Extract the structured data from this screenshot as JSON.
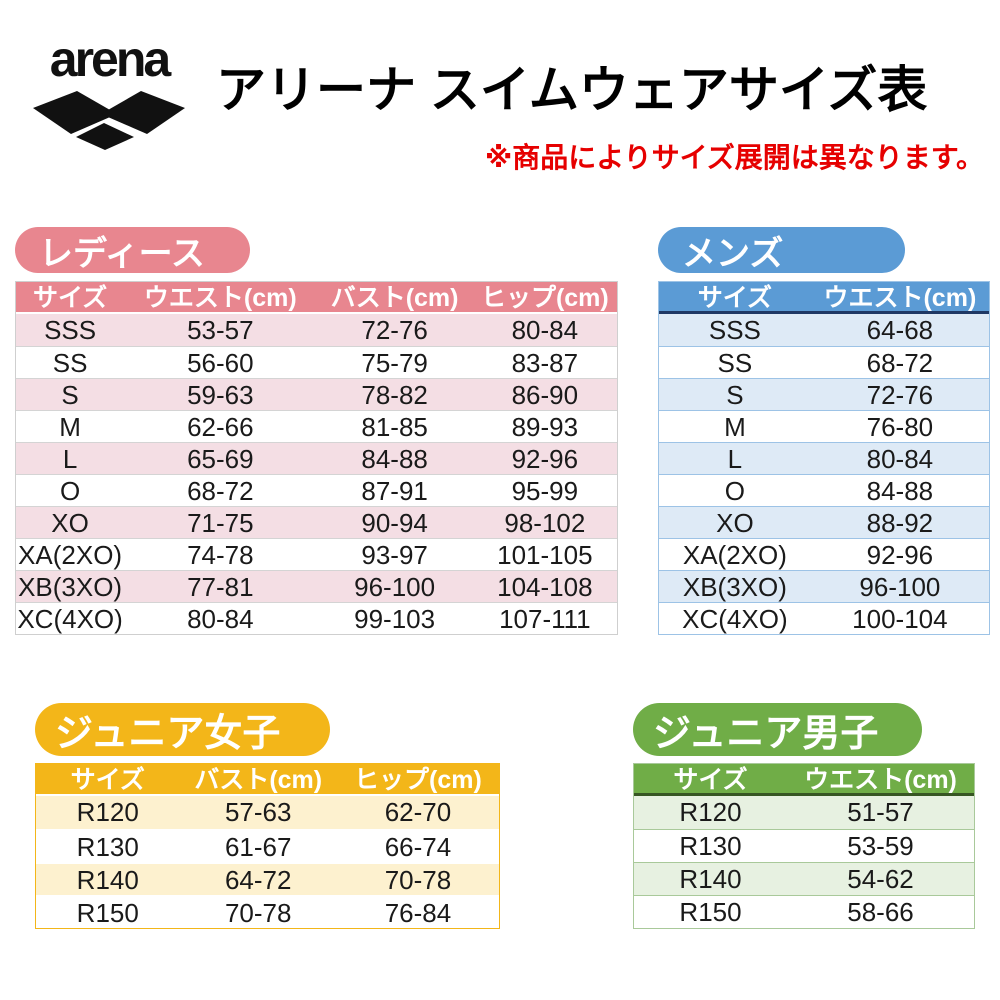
{
  "header": {
    "brand": "arena",
    "title": "アリーナ スイムウェアサイズ表",
    "note": "※商品によりサイズ展開は異なります。"
  },
  "colors": {
    "brand_black": "#111111",
    "note_red": "#e60000",
    "row_line": "#d4d4d4",
    "ladies_main": "#e8868f",
    "ladies_light": "#f4dee4",
    "mens_main": "#5b9bd5",
    "mens_light": "#deeaf6",
    "mens_border": "#9dc3e6",
    "mens_dark": "#1f3864",
    "girls_main": "#f3b619",
    "girls_light": "#fdf1cf",
    "boys_main": "#70ad47",
    "boys_light": "#e7f1e1",
    "boys_border": "#a9c99a",
    "boys_dark": "#375623"
  },
  "tables": {
    "ladies": {
      "label": "レディース",
      "columns": [
        "サイズ",
        "ウエスト(cm)",
        "バスト(cm)",
        "ヒップ(cm)"
      ],
      "rows": [
        [
          "SSS",
          "53-57",
          "72-76",
          "80-84"
        ],
        [
          "SS",
          "56-60",
          "75-79",
          "83-87"
        ],
        [
          "S",
          "59-63",
          "78-82",
          "86-90"
        ],
        [
          "M",
          "62-66",
          "81-85",
          "89-93"
        ],
        [
          "L",
          "65-69",
          "84-88",
          "92-96"
        ],
        [
          "O",
          "68-72",
          "87-91",
          "95-99"
        ],
        [
          "XO",
          "71-75",
          "90-94",
          "98-102"
        ],
        [
          "XA(2XO)",
          "74-78",
          "93-97",
          "101-105"
        ],
        [
          "XB(3XO)",
          "77-81",
          "96-100",
          "104-108"
        ],
        [
          "XC(4XO)",
          "80-84",
          "99-103",
          "107-111"
        ]
      ]
    },
    "mens": {
      "label": "メンズ",
      "columns": [
        "サイズ",
        "ウエスト(cm)"
      ],
      "rows": [
        [
          "SSS",
          "64-68"
        ],
        [
          "SS",
          "68-72"
        ],
        [
          "S",
          "72-76"
        ],
        [
          "M",
          "76-80"
        ],
        [
          "L",
          "80-84"
        ],
        [
          "O",
          "84-88"
        ],
        [
          "XO",
          "88-92"
        ],
        [
          "XA(2XO)",
          "92-96"
        ],
        [
          "XB(3XO)",
          "96-100"
        ],
        [
          "XC(4XO)",
          "100-104"
        ]
      ]
    },
    "junior_girls": {
      "label": "ジュニア女子",
      "columns": [
        "サイズ",
        "バスト(cm)",
        "ヒップ(cm)"
      ],
      "rows": [
        [
          "R120",
          "57-63",
          "62-70"
        ],
        [
          "R130",
          "61-67",
          "66-74"
        ],
        [
          "R140",
          "64-72",
          "70-78"
        ],
        [
          "R150",
          "70-78",
          "76-84"
        ]
      ]
    },
    "junior_boys": {
      "label": "ジュニア男子",
      "columns": [
        "サイズ",
        "ウエスト(cm)"
      ],
      "rows": [
        [
          "R120",
          "51-57"
        ],
        [
          "R130",
          "53-59"
        ],
        [
          "R140",
          "54-62"
        ],
        [
          "R150",
          "58-66"
        ]
      ]
    }
  }
}
